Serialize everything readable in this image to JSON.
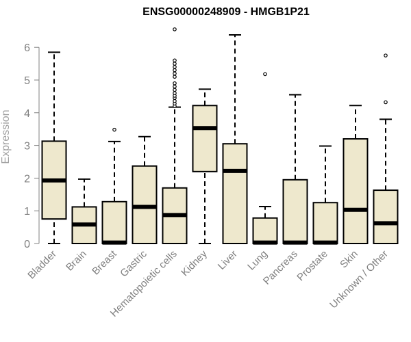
{
  "chart_data": {
    "type": "boxplot",
    "title": "ENSG00000248909 - HMGB1P21",
    "ylabel": "Expression",
    "xlabel": "",
    "ylim": [
      0,
      6.5
    ],
    "yticks": [
      0,
      1,
      2,
      3,
      4,
      5,
      6
    ],
    "grid": false,
    "box_fill": "#EEE8CD",
    "box_stroke": "#000000",
    "categories": [
      "Bladder",
      "Brain",
      "Breast",
      "Gastric",
      "Hematopoietic cells",
      "Kidney",
      "Liver",
      "Lung",
      "Pancreas",
      "Prostate",
      "Skin",
      "Unknown / Other"
    ],
    "boxes": [
      {
        "category": "Bladder",
        "min": 0,
        "q1": 0.75,
        "median": 1.93,
        "q3": 3.13,
        "max": 5.85,
        "outliers": []
      },
      {
        "category": "Brain",
        "min": 0,
        "q1": 0,
        "median": 0.58,
        "q3": 1.12,
        "max": 1.97,
        "outliers": []
      },
      {
        "category": "Breast",
        "min": 0,
        "q1": 0,
        "median": 0.03,
        "q3": 1.28,
        "max": 3.12,
        "outliers": [
          3.48
        ]
      },
      {
        "category": "Gastric",
        "min": 0,
        "q1": 0,
        "median": 1.12,
        "q3": 2.37,
        "max": 3.27,
        "outliers": []
      },
      {
        "category": "Hematopoietic cells",
        "min": 0,
        "q1": 0,
        "median": 0.87,
        "q3": 1.7,
        "max": 4.17,
        "outliers": [
          4.2,
          4.28,
          4.36,
          4.45,
          4.52,
          4.6,
          4.7,
          4.8,
          4.9,
          5.1,
          5.2,
          5.3,
          5.4,
          5.5,
          5.6,
          6.55
        ]
      },
      {
        "category": "Kidney",
        "min": 0,
        "q1": 2.2,
        "median": 3.53,
        "q3": 4.22,
        "max": 4.72,
        "outliers": []
      },
      {
        "category": "Liver",
        "min": 0,
        "q1": 0,
        "median": 2.22,
        "q3": 3.05,
        "max": 6.38,
        "outliers": []
      },
      {
        "category": "Lung",
        "min": 0,
        "q1": 0,
        "median": 0.03,
        "q3": 0.78,
        "max": 1.13,
        "outliers": [
          5.18
        ]
      },
      {
        "category": "Pancreas",
        "min": 0,
        "q1": 0,
        "median": 0.03,
        "q3": 1.95,
        "max": 4.55,
        "outliers": []
      },
      {
        "category": "Prostate",
        "min": 0,
        "q1": 0,
        "median": 0.03,
        "q3": 1.25,
        "max": 2.98,
        "outliers": []
      },
      {
        "category": "Skin",
        "min": 0,
        "q1": 0,
        "median": 1.03,
        "q3": 3.2,
        "max": 4.22,
        "outliers": []
      },
      {
        "category": "Unknown / Other",
        "min": 0,
        "q1": 0,
        "median": 0.62,
        "q3": 1.63,
        "max": 3.8,
        "outliers": [
          4.32,
          5.75
        ]
      }
    ]
  }
}
